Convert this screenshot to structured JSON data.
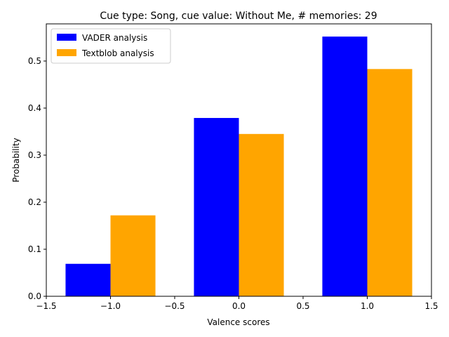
{
  "chart_data": {
    "type": "bar",
    "title": "Cue type: Song, cue value: Without Me, # memories: 29",
    "xlabel": "Valence scores",
    "ylabel": "Probability",
    "xlim": [
      -1.5,
      1.5
    ],
    "ylim": [
      0,
      0.579
    ],
    "xticks": [
      -1.5,
      -1.0,
      -0.5,
      0.0,
      0.5,
      1.0,
      1.5
    ],
    "xtick_labels": [
      "−1.5",
      "−1.0",
      "−0.5",
      "0.0",
      "0.5",
      "1.0",
      "1.5"
    ],
    "yticks": [
      0.0,
      0.1,
      0.2,
      0.3,
      0.4,
      0.5
    ],
    "ytick_labels": [
      "0.0",
      "0.1",
      "0.2",
      "0.3",
      "0.4",
      "0.5"
    ],
    "categories": [
      -1,
      0,
      1
    ],
    "bar_width": 0.35,
    "legend_position": "top-left",
    "series": [
      {
        "name": "VADER analysis",
        "color": "#0000ff",
        "offset": -0.175,
        "values": [
          0.069,
          0.379,
          0.552
        ]
      },
      {
        "name": "Textblob analysis",
        "color": "#ffa500",
        "offset": 0.175,
        "values": [
          0.172,
          0.345,
          0.483
        ]
      }
    ]
  }
}
